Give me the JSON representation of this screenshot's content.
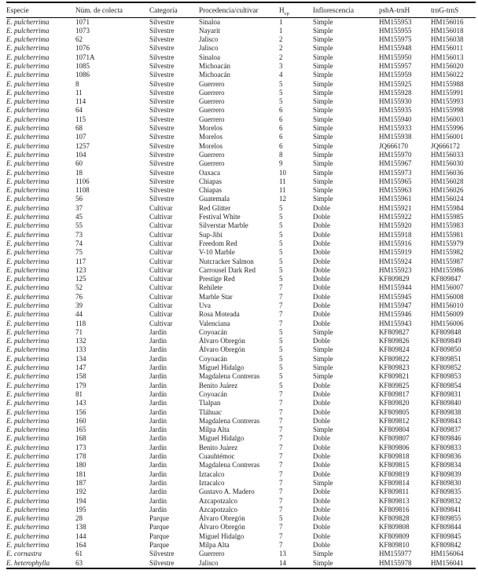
{
  "table": {
    "columns": [
      {
        "key": "especie",
        "label": "Especie"
      },
      {
        "key": "num_colecta",
        "label": "Núm. de colecta"
      },
      {
        "key": "categoria",
        "label": "Categoría"
      },
      {
        "key": "procedencia",
        "label": "Procedencia/cultivar"
      },
      {
        "key": "hcp",
        "label": "H",
        "sub": "cp"
      },
      {
        "key": "inflorescencia",
        "label": "Inflorescencia"
      },
      {
        "key": "psba_trnh",
        "label": "psbA-trnH"
      },
      {
        "key": "trng_trns",
        "label": "trnG-trnS"
      }
    ],
    "rows": [
      [
        "E. pulcherrima",
        "1071",
        "Silvestre",
        "Sinaloa",
        "1",
        "Simple",
        "HM155953",
        "HM156016"
      ],
      [
        "E. pulcherrima",
        "1073",
        "Silvestre",
        "Nayarit",
        "1",
        "Simple",
        "HM155955",
        "HM156018"
      ],
      [
        "E. pulcherrima",
        "62",
        "Silvestre",
        "Jalisco",
        "2",
        "Simple",
        "HM155975",
        "HM156038"
      ],
      [
        "E. pulcherrima",
        "1076",
        "Silvestre",
        "Jalisco",
        "2",
        "Simple",
        "HM155948",
        "HM156011"
      ],
      [
        "E. pulcherrima",
        "1071A",
        "Silvestre",
        "Sinaloa",
        "2",
        "Simple",
        "HM155950",
        "HM156013"
      ],
      [
        "E. pulcherrima",
        "1085",
        "Silvestre",
        "Michoacán",
        "3",
        "Simple",
        "HM155957",
        "HM156020"
      ],
      [
        "E. pulcherrima",
        "1086",
        "Silvestre",
        "Michoacán",
        "4",
        "Simple",
        "HM155959",
        "HM156022"
      ],
      [
        "E. pulcherrima",
        "8",
        "Silvestre",
        "Guerrero",
        "5",
        "Simple",
        "HM155925",
        "HM155988"
      ],
      [
        "E. pulcherrima",
        "11",
        "Silvestre",
        "Guerrero",
        "5",
        "Simple",
        "HM155928",
        "HM155991"
      ],
      [
        "E. pulcherrima",
        "114",
        "Silvestre",
        "Guerrero",
        "5",
        "Simple",
        "HM155930",
        "HM155993"
      ],
      [
        "E. pulcherrima",
        "64",
        "Silvestre",
        "Guerrero",
        "6",
        "Simple",
        "HM155935",
        "HM155998"
      ],
      [
        "E. pulcherrima",
        "115",
        "Silvestre",
        "Guerrero",
        "6",
        "Simple",
        "HM155940",
        "HM156003"
      ],
      [
        "E. pulcherrima",
        "68",
        "Silvestre",
        "Morelos",
        "6",
        "Simple",
        "HM155933",
        "HM155996"
      ],
      [
        "E. pulcherrima",
        "107",
        "Silvestre",
        "Morelos",
        "6",
        "Simple",
        "HM155938",
        "HM156001"
      ],
      [
        "E. pulcherrima",
        "1257",
        "Silvestre",
        "Morelos",
        "6",
        "Simple",
        "JQ666170",
        "JQ666172"
      ],
      [
        "E. pulcherrima",
        "104",
        "Silvestre",
        "Guerrero",
        "8",
        "Simple",
        "HM155970",
        "HM156033"
      ],
      [
        "E. pulcherrima",
        "60",
        "Silvestre",
        "Guerrero",
        "9",
        "Simple",
        "HM155967",
        "HM156030"
      ],
      [
        "E. pulcherrima",
        "18",
        "Silvestre",
        "Oaxaca",
        "10",
        "Simple",
        "HM155973",
        "HM156036"
      ],
      [
        "E. pulcherrima",
        "1106",
        "Silvestre",
        "Chiapas",
        "11",
        "Simple",
        "HM155965",
        "HM156028"
      ],
      [
        "E. pulcherrima",
        "1108",
        "Silvestre",
        "Chiapas",
        "11",
        "Simple",
        "HM155963",
        "HM156026"
      ],
      [
        "E. pulcherrima",
        "56",
        "Silvestre",
        "Guatemala",
        "12",
        "Simple",
        "HM155961",
        "HM156024"
      ],
      [
        "E. pulcherrima",
        "37",
        "Cultivar",
        "Red Glitter",
        "5",
        "Doble",
        "HM155921",
        "HM155984"
      ],
      [
        "E. pulcherrima",
        "45",
        "Cultivar",
        "Festival White",
        "5",
        "Doble",
        "HM155922",
        "HM155985"
      ],
      [
        "E. pulcherrima",
        "55",
        "Cultivar",
        "Silverstar Marble",
        "5",
        "Doble",
        "HM155920",
        "HM155983"
      ],
      [
        "E. pulcherrima",
        "73",
        "Cultivar",
        "Sup-Jibi",
        "5",
        "Doble",
        "HM155918",
        "HM155981"
      ],
      [
        "E. pulcherrima",
        "74",
        "Cultivar",
        "Freedom Red",
        "5",
        "Doble",
        "HM155916",
        "HM155979"
      ],
      [
        "E. pulcherrima",
        "75",
        "Cultivar",
        "V-10 Marble",
        "5",
        "Doble",
        "HM155919",
        "HM155982"
      ],
      [
        "E. pulcherrima",
        "117",
        "Cultivar",
        "Nutcracker Salmon",
        "5",
        "Doble",
        "HM155924",
        "HM155987"
      ],
      [
        "E. pulcherrima",
        "123",
        "Cultivar",
        "Carrousel Dark Red",
        "5",
        "Doble",
        "HM155923",
        "HM155986"
      ],
      [
        "E. pulcherrima",
        "125",
        "Cultivar",
        "Prestige Red",
        "5",
        "Doble",
        "KF809829",
        "KF809847"
      ],
      [
        "E. pulcherrima",
        "52",
        "Cultivar",
        "Rehilete",
        "7",
        "Doble",
        "HM155944",
        "HM156007"
      ],
      [
        "E. pulcherrima",
        "76",
        "Cultivar",
        "Marble Star",
        "7",
        "Doble",
        "HM155945",
        "HM156008"
      ],
      [
        "E. pulcherrima",
        "39",
        "Cultivar",
        "Uva",
        "7",
        "Doble",
        "HM155947",
        "HM156010"
      ],
      [
        "E. pulcherrima",
        "44",
        "Cultivar",
        "Rosa Moteada",
        "7",
        "Doble",
        "HM155946",
        "HM156009"
      ],
      [
        "E. pulcherrima",
        "118",
        "Cultivar",
        "Valenciana",
        "7",
        "Doble",
        "HM155943",
        "HM156006"
      ],
      [
        "E. pulcherrima",
        "71",
        "Jardín",
        "Coyoacán",
        "5",
        "Simple",
        "KF809827",
        "KF809848"
      ],
      [
        "E. pulcherrima",
        "132",
        "Jardín",
        "Álvaro Obregón",
        "5",
        "Doble",
        "KF809826",
        "KF809849"
      ],
      [
        "E. pulcherrima",
        "133",
        "Jardín",
        "Álvaro Obregón",
        "5",
        "Simple",
        "KF809824",
        "KF809850"
      ],
      [
        "E. pulcherrima",
        "134",
        "Jardín",
        "Coyoacán",
        "5",
        "Simple",
        "KF809822",
        "KF809851"
      ],
      [
        "E. pulcherrima",
        "147",
        "Jardín",
        "Miguel Hidalgo",
        "5",
        "Simple",
        "KF809823",
        "KF809852"
      ],
      [
        "E. pulcherrima",
        "158",
        "Jardín",
        "Magdalena Contreras",
        "5",
        "Simple",
        "KF809821",
        "KF809853"
      ],
      [
        "E. pulcherrima",
        "179",
        "Jardín",
        "Benito Juárez",
        "5",
        "Doble",
        "KF809825",
        "KF809854"
      ],
      [
        "E. pulcherrima",
        "81",
        "Jardín",
        "Coyoacán",
        "7",
        "Doble",
        "KF809817",
        "KF809831"
      ],
      [
        "E. pulcherrima",
        "143",
        "Jardín",
        "Tlalpan",
        "7",
        "Doble",
        "KF809820",
        "KF809840"
      ],
      [
        "E. pulcherrima",
        "156",
        "Jardín",
        "Tláhuac",
        "7",
        "Doble",
        "KF809805",
        "KF809838"
      ],
      [
        "E. pulcherrima",
        "160",
        "Jardín",
        "Magdalena Contreras",
        "7",
        "Doble",
        "KF809812",
        "KF809843"
      ],
      [
        "E. pulcherrima",
        "165",
        "Jardín",
        "Milpa Alta",
        "7",
        "Simple",
        "KF809804",
        "KF809837"
      ],
      [
        "E. pulcherrima",
        "168",
        "Jardín",
        "Miguel Hidalgo",
        "7",
        "Doble",
        "KF809807",
        "KF809846"
      ],
      [
        "E. pulcherrima",
        "173",
        "Jardín",
        "Benito Juárez",
        "7",
        "Doble",
        "KF809806",
        "KF809833"
      ],
      [
        "E. pulcherrima",
        "178",
        "Jardín",
        "Cuauhtémoc",
        "7",
        "Doble",
        "KF809818",
        "KF809836"
      ],
      [
        "E. pulcherrima",
        "180",
        "Jardín",
        "Magdalena Contreras",
        "7",
        "Doble",
        "KF809815",
        "KF809834"
      ],
      [
        "E. pulcherrima",
        "181",
        "Jardín",
        "Iztacalco",
        "7",
        "Doble",
        "KF809819",
        "KF809839"
      ],
      [
        "E. pulcherrima",
        "187",
        "Jardín",
        "Iztacalco",
        "7",
        "Simple",
        "KF809814",
        "KF809830"
      ],
      [
        "E. pulcherrima",
        "192",
        "Jardín",
        "Gustavo A. Madero",
        "7",
        "Doble",
        "KF809811",
        "KF809835"
      ],
      [
        "E. pulcherrima",
        "194",
        "Jardín",
        "Azcapotzalco",
        "7",
        "Doble",
        "KF809813",
        "KF809832"
      ],
      [
        "E. pulcherrima",
        "195",
        "Jardín",
        "Azcapotzalco",
        "7",
        "Doble",
        "KF809816",
        "KF809841"
      ],
      [
        "E. pulcherrima",
        "28",
        "Parque",
        "Álvaro Obregón",
        "5",
        "Doble",
        "KF809828",
        "KF809855"
      ],
      [
        "E. pulcherrima",
        "138",
        "Parque",
        "Álvaro Obregón",
        "7",
        "Doble",
        "KF809808",
        "KF809844"
      ],
      [
        "E. pulcherrima",
        "144",
        "Parque",
        "Miguel Hidalgo",
        "7",
        "Doble",
        "KF809809",
        "KF809845"
      ],
      [
        "E. pulcherrima",
        "164",
        "Parque",
        "Milpa Alta",
        "7",
        "Doble",
        "KF809810",
        "KF809842"
      ],
      [
        "E. cornastra",
        "61",
        "Silvestre",
        "Guerrero",
        "13",
        "Simple",
        "HM155977",
        "HM156064"
      ],
      [
        "E. heterophylla",
        "63",
        "Silvestre",
        "Jalisco",
        "14",
        "Simple",
        "HM155978",
        "HM156041"
      ]
    ],
    "colors": {
      "text": "#1c1c1c",
      "rule": "#000000",
      "background": "#ffffff"
    }
  }
}
